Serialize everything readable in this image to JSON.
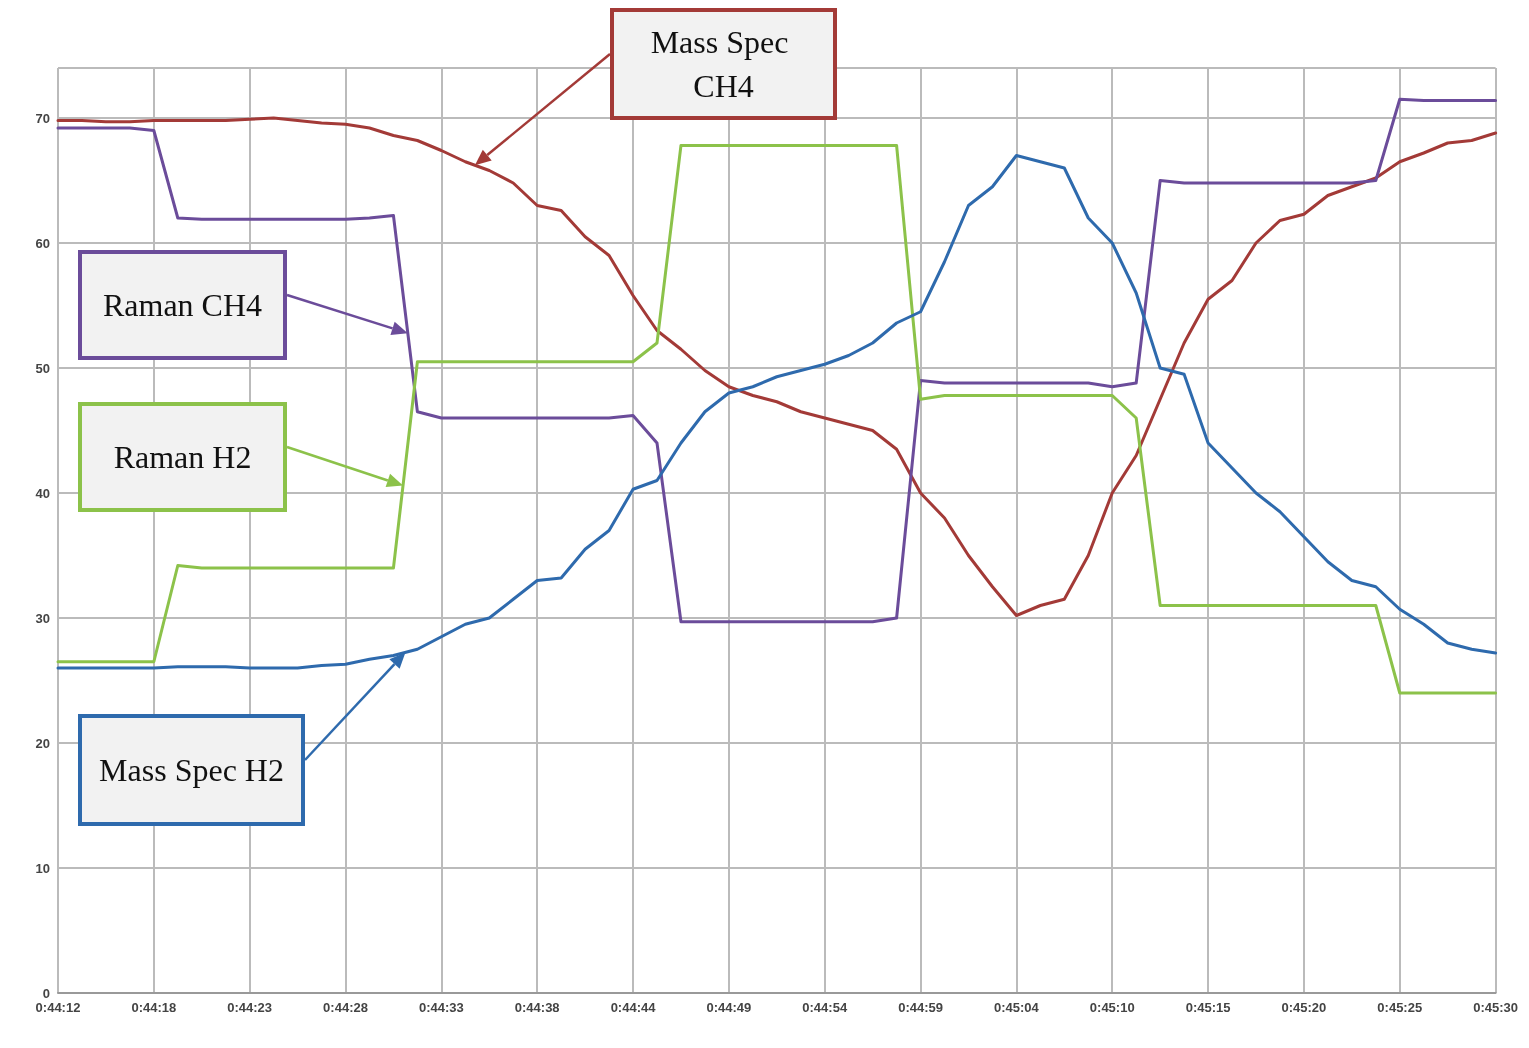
{
  "chart_data": {
    "type": "line",
    "categories": [
      "0:44:12",
      null,
      null,
      null,
      "0:44:18",
      null,
      null,
      null,
      "0:44:23",
      null,
      null,
      null,
      "0:44:28",
      null,
      null,
      null,
      "0:44:33",
      null,
      null,
      null,
      "0:44:38",
      null,
      null,
      null,
      "0:44:44",
      null,
      null,
      null,
      "0:44:49",
      null,
      null,
      null,
      "0:44:54",
      null,
      null,
      null,
      "0:44:59",
      null,
      null,
      null,
      "0:45:04",
      null,
      null,
      null,
      "0:45:10",
      null,
      null,
      null,
      "0:45:15",
      null,
      null,
      null,
      "0:45:20",
      null,
      null,
      null,
      "0:45:25",
      null,
      null,
      null,
      "0:45:30"
    ],
    "series": [
      {
        "name": "Mass Spec CH4",
        "color": "#a33a37",
        "values": [
          69.8,
          69.8,
          69.7,
          69.7,
          69.8,
          69.8,
          69.8,
          69.8,
          69.9,
          70,
          69.8,
          69.6,
          69.5,
          69.2,
          68.6,
          68.2,
          67.4,
          66.5,
          65.8,
          64.8,
          63,
          62.6,
          60.5,
          59,
          55.8,
          53,
          51.5,
          49.8,
          48.5,
          47.8,
          47.3,
          46.5,
          46,
          45.5,
          45,
          43.5,
          40,
          38,
          35,
          32.5,
          30.2,
          31,
          31.5,
          35,
          40,
          43,
          47.5,
          52,
          55.5,
          57,
          60,
          61.8,
          62.3,
          63.8,
          64.5,
          65.2,
          66.5,
          67.2,
          68,
          68.2,
          68.8
        ]
      },
      {
        "name": "Raman CH4",
        "color": "#6b4c9a",
        "values": [
          69.2,
          69.2,
          69.2,
          69.2,
          69,
          62,
          61.9,
          61.9,
          61.9,
          61.9,
          61.9,
          61.9,
          61.9,
          62,
          62.2,
          46.5,
          46,
          46,
          46,
          46,
          46,
          46,
          46,
          46,
          46.2,
          44,
          29.7,
          29.7,
          29.7,
          29.7,
          29.7,
          29.7,
          29.7,
          29.7,
          29.7,
          30,
          49,
          48.8,
          48.8,
          48.8,
          48.8,
          48.8,
          48.8,
          48.8,
          48.5,
          48.8,
          65,
          64.8,
          64.8,
          64.8,
          64.8,
          64.8,
          64.8,
          64.8,
          64.8,
          65,
          71.5,
          71.4,
          71.4,
          71.4,
          71.4
        ]
      },
      {
        "name": "Raman H2",
        "color": "#8cc24a",
        "values": [
          26.5,
          26.5,
          26.5,
          26.5,
          26.5,
          34.2,
          34,
          34,
          34,
          34,
          34,
          34,
          34,
          34,
          34,
          50.5,
          50.5,
          50.5,
          50.5,
          50.5,
          50.5,
          50.5,
          50.5,
          50.5,
          50.5,
          52,
          67.8,
          67.8,
          67.8,
          67.8,
          67.8,
          67.8,
          67.8,
          67.8,
          67.8,
          67.8,
          47.5,
          47.8,
          47.8,
          47.8,
          47.8,
          47.8,
          47.8,
          47.8,
          47.8,
          46,
          31,
          31,
          31,
          31,
          31,
          31,
          31,
          31,
          31,
          31,
          24,
          24,
          24,
          24,
          24
        ]
      },
      {
        "name": "Mass Spec H2",
        "color": "#2e6aad",
        "values": [
          26,
          26,
          26,
          26,
          26,
          26.1,
          26.1,
          26.1,
          26,
          26,
          26,
          26.2,
          26.3,
          26.7,
          27,
          27.5,
          28.5,
          29.5,
          30,
          31.5,
          33,
          33.2,
          35.5,
          37,
          40.3,
          41,
          44,
          46.5,
          48,
          48.5,
          49.3,
          49.8,
          50.3,
          51,
          52,
          53.6,
          54.5,
          58.5,
          63,
          64.5,
          67,
          66.5,
          66,
          62,
          60,
          56,
          50,
          49.5,
          44,
          42,
          40,
          38.5,
          36.5,
          34.5,
          33,
          32.5,
          30.7,
          29.5,
          28,
          27.5,
          27.2
        ]
      }
    ],
    "ylim": [
      0,
      74
    ],
    "yticks": [
      0,
      10,
      20,
      30,
      40,
      50,
      60,
      70
    ],
    "grid": true,
    "legend": "left",
    "marker": "none",
    "line_style": "solid"
  }
}
